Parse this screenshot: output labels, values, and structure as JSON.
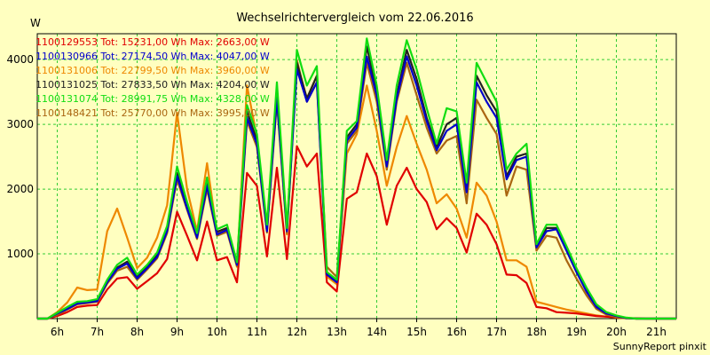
{
  "chart_data": {
    "type": "line",
    "title": "Wechselrichtervergleich vom 22.06.2016",
    "ylabel": "W",
    "footer": "SunnyReport pinxit",
    "ylim": [
      0,
      4400
    ],
    "xlim": [
      5.5,
      21.5
    ],
    "yticks": [
      1000,
      2000,
      3000,
      4000
    ],
    "xticks": [
      6,
      7,
      8,
      9,
      10,
      11,
      12,
      13,
      14,
      15,
      16,
      17,
      18,
      19,
      20,
      21
    ],
    "xtick_labels": [
      "6h",
      "7h",
      "8h",
      "9h",
      "10h",
      "11h",
      "12h",
      "13h",
      "14h",
      "15h",
      "16h",
      "17h",
      "18h",
      "19h",
      "20h",
      "21h"
    ],
    "grid": true,
    "background": "#ffffc0",
    "grid_color": "#33cc33",
    "x": [
      5.5,
      5.75,
      6.0,
      6.25,
      6.5,
      6.75,
      7.0,
      7.25,
      7.5,
      7.75,
      8.0,
      8.25,
      8.5,
      8.75,
      9.0,
      9.25,
      9.5,
      9.75,
      10.0,
      10.25,
      10.5,
      10.75,
      11.0,
      11.25,
      11.5,
      11.75,
      12.0,
      12.25,
      12.5,
      12.75,
      13.0,
      13.25,
      13.5,
      13.75,
      14.0,
      14.25,
      14.5,
      14.75,
      15.0,
      15.25,
      15.5,
      15.75,
      16.0,
      16.25,
      16.5,
      16.75,
      17.0,
      17.25,
      17.5,
      17.75,
      18.0,
      18.25,
      18.5,
      18.75,
      19.0,
      19.25,
      19.5,
      19.75,
      20.0,
      20.25,
      20.5,
      20.75,
      21.0,
      21.25,
      21.5
    ],
    "series": [
      {
        "name": "1100129553",
        "legend": "1100129553 Tot: 15231,00 Wh Max: 2663,00 W",
        "color": "#e00000",
        "values": [
          0,
          0,
          40,
          100,
          180,
          200,
          210,
          450,
          620,
          640,
          460,
          580,
          700,
          920,
          1650,
          1280,
          900,
          1500,
          900,
          950,
          560,
          2250,
          2050,
          960,
          2330,
          920,
          2663,
          2350,
          2550,
          560,
          420,
          1850,
          1950,
          2550,
          2200,
          1450,
          2050,
          2330,
          2000,
          1800,
          1380,
          1550,
          1400,
          1020,
          1620,
          1450,
          1150,
          680,
          670,
          550,
          180,
          160,
          100,
          90,
          80,
          60,
          40,
          30,
          20,
          10,
          5,
          0,
          0,
          0,
          0
        ]
      },
      {
        "name": "1100130966",
        "legend": "1100130966 Tot: 27174,50 Wh Max: 4047,00 W",
        "color": "#0000cc",
        "values": [
          0,
          0,
          80,
          150,
          230,
          250,
          270,
          560,
          770,
          850,
          620,
          780,
          950,
          1350,
          2200,
          1700,
          1250,
          2050,
          1300,
          1370,
          830,
          3100,
          2700,
          1350,
          3400,
          1350,
          3850,
          3350,
          3650,
          680,
          560,
          2750,
          2950,
          4047,
          3450,
          2350,
          3400,
          4050,
          3600,
          3050,
          2600,
          2900,
          3000,
          1950,
          3650,
          3350,
          3100,
          2150,
          2450,
          2500,
          1100,
          1350,
          1380,
          1050,
          720,
          420,
          180,
          80,
          40,
          10,
          0,
          0,
          0,
          0,
          0
        ]
      },
      {
        "name": "1100131006",
        "legend": "1100131006 Tot: 22799,50 Wh Max: 3960,00 W",
        "color": "#ee8800",
        "values": [
          0,
          0,
          100,
          250,
          480,
          440,
          450,
          1350,
          1700,
          1250,
          780,
          940,
          1250,
          1750,
          3180,
          2000,
          1350,
          2400,
          1320,
          1400,
          800,
          3600,
          2800,
          1350,
          3400,
          1300,
          3960,
          3400,
          3750,
          650,
          530,
          2550,
          2850,
          3600,
          2900,
          2050,
          2650,
          3130,
          2700,
          2300,
          1780,
          1920,
          1700,
          1250,
          2100,
          1900,
          1500,
          900,
          900,
          800,
          260,
          220,
          180,
          140,
          110,
          80,
          50,
          30,
          15,
          5,
          0,
          0,
          0,
          0,
          0
        ]
      },
      {
        "name": "1100131025",
        "legend": "1100131025 Tot: 27833,50 Wh Max: 4204,00 W",
        "color": "#222222",
        "values": [
          0,
          0,
          80,
          160,
          240,
          260,
          280,
          580,
          790,
          880,
          650,
          800,
          980,
          1380,
          2250,
          1750,
          1280,
          2100,
          1340,
          1400,
          850,
          3200,
          2750,
          1400,
          3450,
          1380,
          3950,
          3400,
          3750,
          700,
          580,
          2800,
          3000,
          4204,
          3500,
          2400,
          3450,
          4150,
          3700,
          3100,
          2650,
          3000,
          3100,
          2000,
          3750,
          3450,
          3200,
          2200,
          2500,
          2550,
          1120,
          1400,
          1400,
          1080,
          750,
          440,
          200,
          90,
          40,
          10,
          0,
          0,
          0,
          0,
          0
        ]
      },
      {
        "name": "1100131074",
        "legend": "1100131074 Tot: 28991,75 Wh Max: 4328,00 W",
        "color": "#11dd11",
        "values": [
          0,
          0,
          90,
          180,
          260,
          270,
          300,
          600,
          830,
          940,
          680,
          830,
          1020,
          1430,
          2350,
          1800,
          1320,
          2180,
          1380,
          1450,
          870,
          3300,
          2850,
          1450,
          3650,
          1400,
          4150,
          3600,
          3900,
          720,
          600,
          2900,
          3050,
          4328,
          3600,
          2450,
          3600,
          4300,
          3850,
          3250,
          2700,
          3250,
          3200,
          2100,
          3950,
          3650,
          3350,
          2300,
          2550,
          2700,
          1150,
          1450,
          1450,
          1120,
          780,
          480,
          220,
          100,
          50,
          15,
          0,
          0,
          0,
          0,
          0
        ]
      },
      {
        "name": "1100148421",
        "legend": "1100148421 Tot: 25770,00 Wh Max: 3995,00 W",
        "color": "#aa6611",
        "values": [
          0,
          0,
          60,
          140,
          220,
          240,
          260,
          540,
          740,
          800,
          600,
          760,
          930,
          1320,
          2150,
          1680,
          1230,
          2000,
          1280,
          1340,
          810,
          3050,
          2650,
          1330,
          3350,
          1320,
          3995,
          3350,
          3650,
          800,
          640,
          2700,
          2900,
          3950,
          3350,
          2300,
          3350,
          3950,
          3450,
          2950,
          2550,
          2750,
          2820,
          1780,
          3380,
          3100,
          2850,
          1900,
          2350,
          2300,
          1050,
          1280,
          1250,
          900,
          620,
          360,
          150,
          60,
          25,
          5,
          0,
          0,
          0,
          0,
          0
        ]
      }
    ]
  }
}
